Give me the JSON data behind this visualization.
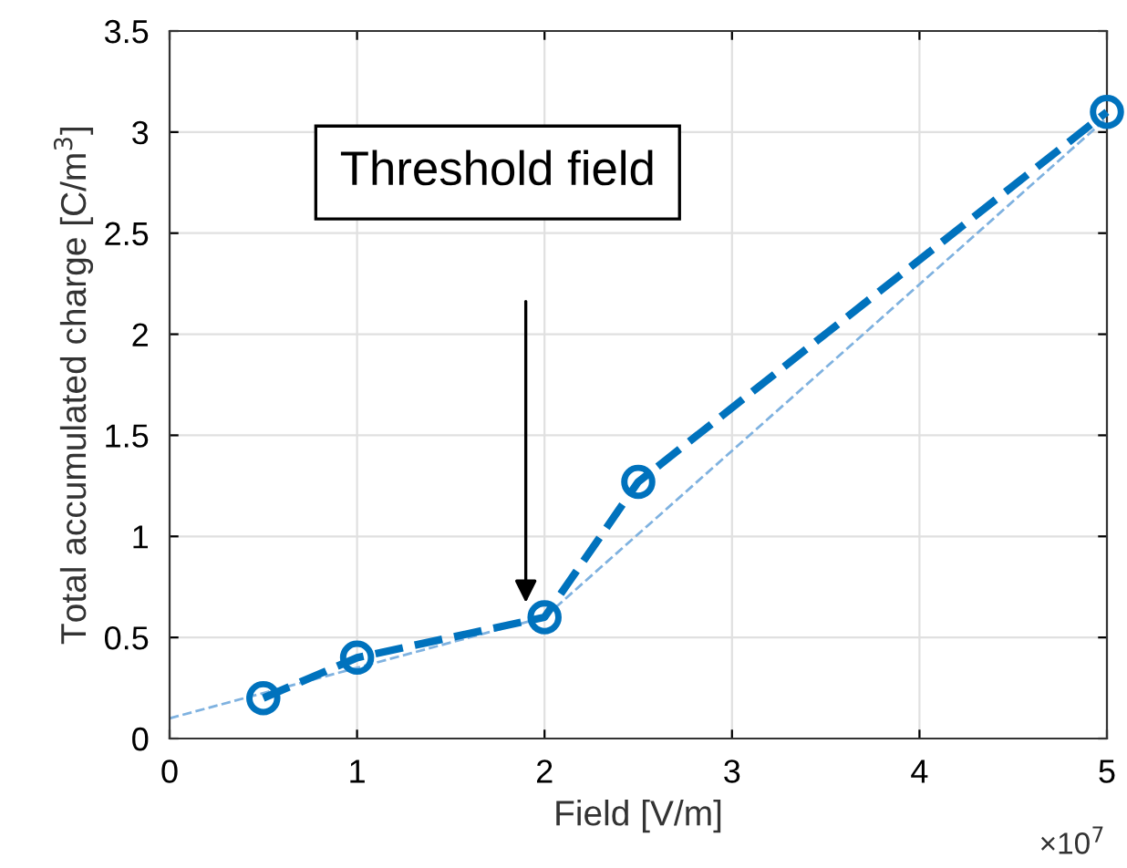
{
  "chart_data": {
    "type": "line",
    "xlabel": "Field [V/m]",
    "ylabel": "Total accumulated charge [C/m$^{3}$]",
    "series": [
      {
        "color": "#0072bd",
        "x": [
          0.5,
          1,
          2,
          2.5,
          5
        ],
        "values": [
          0.2,
          0.4,
          0.6,
          1.27,
          3.1
        ],
        "marker": "circle",
        "line_style": "dashed"
      },
      {
        "color": "#7fb2e0",
        "x": [
          0,
          2,
          5
        ],
        "values": [
          0.1,
          0.6,
          3.07
        ],
        "marker": "none",
        "line_style": "dashed"
      }
    ],
    "xlim": [
      0,
      5
    ],
    "xticks": [
      0,
      1,
      2,
      3,
      4,
      5
    ],
    "ylim": [
      0,
      3.5
    ],
    "yticks": [
      0,
      0.5,
      1,
      1.5,
      2,
      2.5,
      3,
      3.5
    ],
    "grid": true,
    "annotations": [
      "Threshold field",
      "×10$^{7}$"
    ]
  }
}
